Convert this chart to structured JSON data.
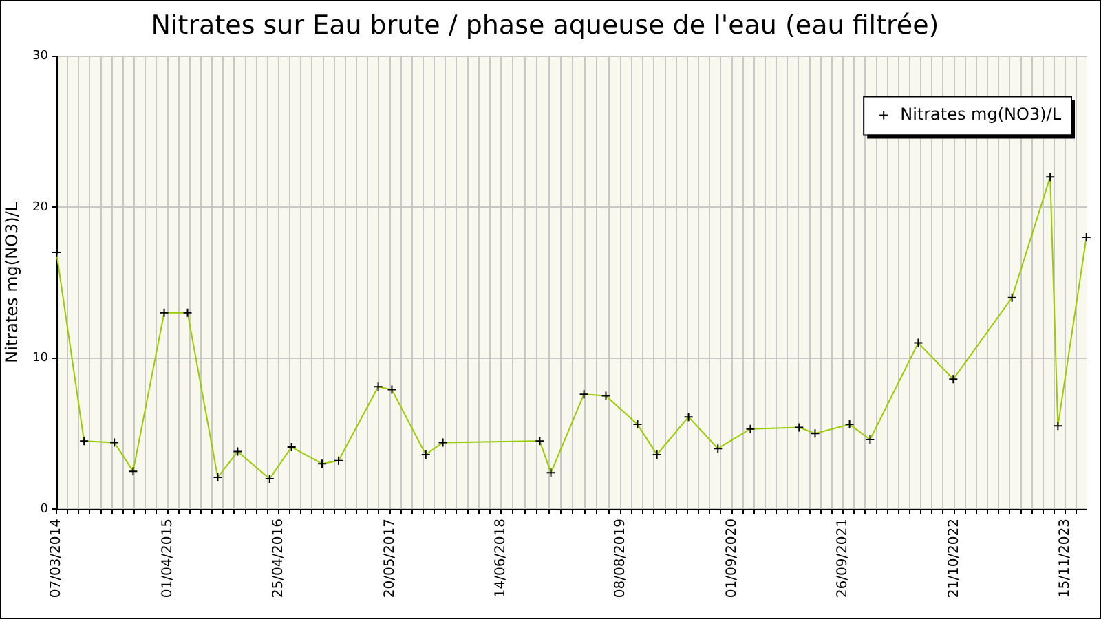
{
  "chart_data": {
    "type": "line",
    "title": "Nitrates sur Eau brute / phase aqueuse de l'eau (eau filtrée)",
    "ylabel": "Nitrates mg(NO3)/L",
    "x": [
      "2014-03-07",
      "2014-06-12",
      "2014-09-26",
      "2014-12-01",
      "2015-03-20",
      "2015-06-10",
      "2015-09-24",
      "2015-12-03",
      "2016-03-24",
      "2016-06-09",
      "2016-09-24",
      "2016-11-21",
      "2017-04-09",
      "2017-05-27",
      "2017-09-23",
      "2017-11-22",
      "2018-10-28",
      "2018-12-06",
      "2019-04-01",
      "2019-06-17",
      "2019-10-06",
      "2019-12-13",
      "2020-04-02",
      "2020-07-14",
      "2020-11-05",
      "2021-04-25",
      "2021-06-20",
      "2021-10-19",
      "2021-12-30",
      "2022-06-17",
      "2022-10-18",
      "2023-05-12",
      "2023-09-23",
      "2023-10-20",
      "2024-01-28"
    ],
    "series": [
      {
        "name": "Nitrates mg(NO3)/L",
        "color": "#99cc00",
        "values": [
          17.0,
          4.5,
          4.4,
          2.5,
          13.0,
          13.0,
          2.1,
          3.8,
          2.0,
          4.1,
          3.0,
          3.2,
          8.1,
          7.9,
          3.6,
          4.4,
          4.5,
          2.4,
          7.6,
          7.5,
          5.6,
          3.6,
          6.1,
          4.0,
          5.3,
          5.4,
          5.0,
          5.6,
          4.6,
          11.0,
          8.6,
          14.0,
          22.0,
          5.5,
          18.0
        ]
      }
    ],
    "xlim": [
      "2014-03-07",
      "2024-01-31"
    ],
    "xticks": [
      {
        "value": "2014-03-07",
        "label": "07/03/2014"
      },
      {
        "value": "2014-04-15",
        "label": null
      },
      {
        "value": "2014-05-24",
        "label": null
      },
      {
        "value": "2014-07-02",
        "label": null
      },
      {
        "value": "2014-08-10",
        "label": null
      },
      {
        "value": "2014-09-18",
        "label": null
      },
      {
        "value": "2014-10-27",
        "label": null
      },
      {
        "value": "2014-12-05",
        "label": null
      },
      {
        "value": "2015-01-13",
        "label": null
      },
      {
        "value": "2015-02-21",
        "label": null
      },
      {
        "value": "2015-04-01",
        "label": "01/04/2015"
      },
      {
        "value": "2015-05-10",
        "label": null
      },
      {
        "value": "2015-06-18",
        "label": null
      },
      {
        "value": "2015-07-27",
        "label": null
      },
      {
        "value": "2015-09-04",
        "label": null
      },
      {
        "value": "2015-10-13",
        "label": null
      },
      {
        "value": "2015-11-21",
        "label": null
      },
      {
        "value": "2015-12-30",
        "label": null
      },
      {
        "value": "2016-02-07",
        "label": null
      },
      {
        "value": "2016-03-17",
        "label": null
      },
      {
        "value": "2016-04-25",
        "label": "25/04/2016"
      },
      {
        "value": "2016-06-03",
        "label": null
      },
      {
        "value": "2016-07-12",
        "label": null
      },
      {
        "value": "2016-08-20",
        "label": null
      },
      {
        "value": "2016-09-28",
        "label": null
      },
      {
        "value": "2016-11-06",
        "label": null
      },
      {
        "value": "2016-12-15",
        "label": null
      },
      {
        "value": "2017-01-23",
        "label": null
      },
      {
        "value": "2017-03-03",
        "label": null
      },
      {
        "value": "2017-04-11",
        "label": null
      },
      {
        "value": "2017-05-20",
        "label": "20/05/2017"
      },
      {
        "value": "2017-06-28",
        "label": null
      },
      {
        "value": "2017-08-06",
        "label": null
      },
      {
        "value": "2017-09-14",
        "label": null
      },
      {
        "value": "2017-10-23",
        "label": null
      },
      {
        "value": "2017-12-01",
        "label": null
      },
      {
        "value": "2018-01-09",
        "label": null
      },
      {
        "value": "2018-02-17",
        "label": null
      },
      {
        "value": "2018-03-28",
        "label": null
      },
      {
        "value": "2018-05-06",
        "label": null
      },
      {
        "value": "2018-06-14",
        "label": "14/06/2018"
      },
      {
        "value": "2018-07-26",
        "label": null
      },
      {
        "value": "2018-09-06",
        "label": null
      },
      {
        "value": "2018-10-18",
        "label": null
      },
      {
        "value": "2018-11-29",
        "label": null
      },
      {
        "value": "2019-01-10",
        "label": null
      },
      {
        "value": "2019-02-21",
        "label": null
      },
      {
        "value": "2019-04-04",
        "label": null
      },
      {
        "value": "2019-05-16",
        "label": null
      },
      {
        "value": "2019-06-27",
        "label": null
      },
      {
        "value": "2019-08-08",
        "label": "08/08/2019"
      },
      {
        "value": "2019-09-16",
        "label": null
      },
      {
        "value": "2019-10-25",
        "label": null
      },
      {
        "value": "2019-12-03",
        "label": null
      },
      {
        "value": "2020-01-11",
        "label": null
      },
      {
        "value": "2020-02-19",
        "label": null
      },
      {
        "value": "2020-03-29",
        "label": null
      },
      {
        "value": "2020-05-07",
        "label": null
      },
      {
        "value": "2020-06-15",
        "label": null
      },
      {
        "value": "2020-07-24",
        "label": null
      },
      {
        "value": "2020-09-01",
        "label": "01/09/2020"
      },
      {
        "value": "2020-10-10",
        "label": null
      },
      {
        "value": "2020-11-18",
        "label": null
      },
      {
        "value": "2020-12-27",
        "label": null
      },
      {
        "value": "2021-02-04",
        "label": null
      },
      {
        "value": "2021-03-15",
        "label": null
      },
      {
        "value": "2021-04-23",
        "label": null
      },
      {
        "value": "2021-06-01",
        "label": null
      },
      {
        "value": "2021-07-10",
        "label": null
      },
      {
        "value": "2021-08-18",
        "label": null
      },
      {
        "value": "2021-09-26",
        "label": "26/09/2021"
      },
      {
        "value": "2021-11-04",
        "label": null
      },
      {
        "value": "2021-12-13",
        "label": null
      },
      {
        "value": "2022-01-21",
        "label": null
      },
      {
        "value": "2022-03-01",
        "label": null
      },
      {
        "value": "2022-04-09",
        "label": null
      },
      {
        "value": "2022-05-18",
        "label": null
      },
      {
        "value": "2022-06-26",
        "label": null
      },
      {
        "value": "2022-08-04",
        "label": null
      },
      {
        "value": "2022-09-12",
        "label": null
      },
      {
        "value": "2022-10-21",
        "label": "21/10/2022"
      },
      {
        "value": "2022-11-29",
        "label": null
      },
      {
        "value": "2023-01-07",
        "label": null
      },
      {
        "value": "2023-02-15",
        "label": null
      },
      {
        "value": "2023-03-26",
        "label": null
      },
      {
        "value": "2023-05-04",
        "label": null
      },
      {
        "value": "2023-06-12",
        "label": null
      },
      {
        "value": "2023-07-21",
        "label": null
      },
      {
        "value": "2023-08-29",
        "label": null
      },
      {
        "value": "2023-10-07",
        "label": null
      },
      {
        "value": "2023-11-15",
        "label": "15/11/2023"
      },
      {
        "value": "2023-12-24",
        "label": null
      }
    ],
    "ylim": [
      0,
      30
    ],
    "yticks": [
      0,
      10,
      20,
      30
    ],
    "grid": true,
    "legend": "top right",
    "marker": "cross",
    "line_style": "solid"
  }
}
